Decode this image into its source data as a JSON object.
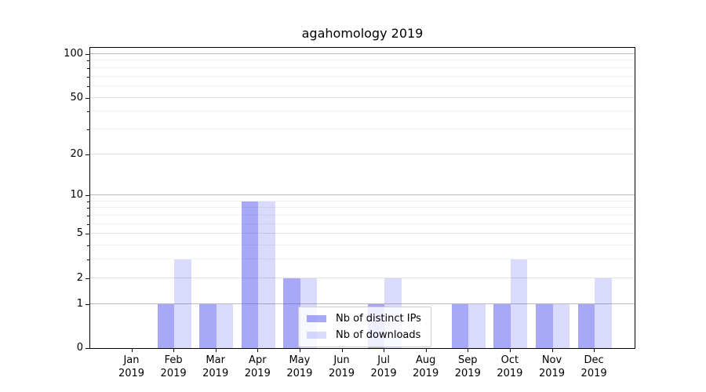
{
  "chart_data": {
    "type": "bar",
    "title": "agahomology 2019",
    "categories": [
      "Jan",
      "Feb",
      "Mar",
      "Apr",
      "May",
      "Jun",
      "Jul",
      "Aug",
      "Sep",
      "Oct",
      "Nov",
      "Dec"
    ],
    "category_year": "2019",
    "series": [
      {
        "name": "Nb of distinct IPs",
        "color": "rgba(70,70,240,0.47)",
        "values": [
          0,
          1,
          1,
          9,
          2,
          0,
          1,
          0,
          1,
          1,
          1,
          1
        ]
      },
      {
        "name": "Nb of downloads",
        "color": "rgba(70,70,240,0.20)",
        "values": [
          0,
          3,
          1,
          9,
          2,
          0,
          2,
          0,
          1,
          3,
          1,
          2
        ]
      }
    ],
    "y_axis": {
      "scale": "log1p",
      "ticks": [
        0,
        1,
        2,
        5,
        10,
        20,
        50,
        100
      ],
      "minor_ticks": [
        3,
        4,
        6,
        7,
        8,
        9,
        30,
        40,
        60,
        70,
        80,
        90
      ],
      "range": [
        0,
        112
      ]
    },
    "x_axis": {
      "label_format": "month newline year"
    },
    "grid": "horizontal only",
    "legend_position": "lower center"
  }
}
